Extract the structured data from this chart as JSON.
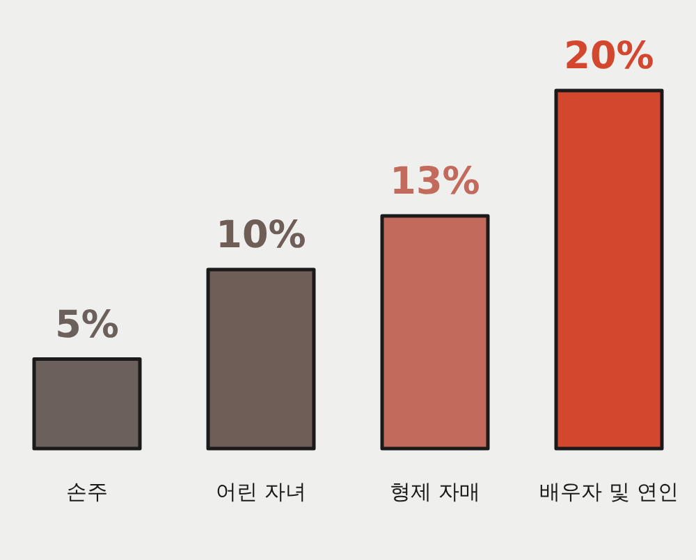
{
  "chart_data": {
    "type": "bar",
    "categories": [
      "손주",
      "어린 자녀",
      "형제 자매",
      "배우자 및 연인"
    ],
    "values": [
      5,
      10,
      13,
      20
    ],
    "colors": [
      "#6b605c",
      "#6f5d57",
      "#c26a5c",
      "#d4472f"
    ],
    "value_labels": [
      "5%",
      "10%",
      "13%",
      "20%"
    ]
  }
}
